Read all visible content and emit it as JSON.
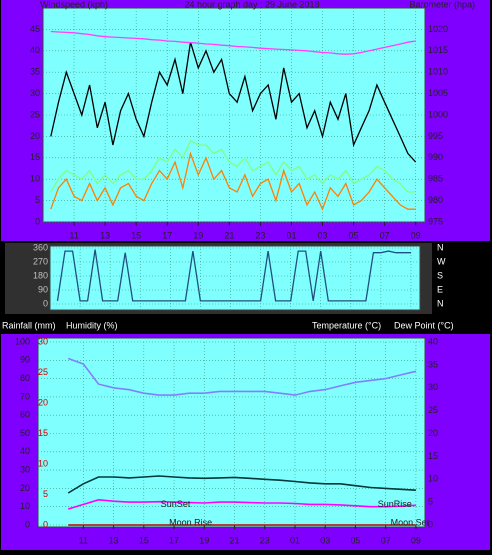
{
  "chart_data": [
    {
      "type": "line",
      "title": "24 hour graph day : 29 June 2018",
      "ylabel": "Windspeed (kph)",
      "y2label": "Barometer (hpa)",
      "x": [
        9.5,
        10,
        10.5,
        11,
        11.5,
        12,
        12.5,
        13,
        13.5,
        14,
        14.5,
        15,
        15.5,
        16,
        16.5,
        17,
        17.5,
        18,
        18.5,
        19,
        19.5,
        20,
        20.5,
        21,
        21.5,
        22,
        22.5,
        23,
        23.5,
        24,
        24.5,
        25,
        25.5,
        26,
        26.5,
        27,
        27.5,
        28,
        28.5,
        29,
        29.5,
        30,
        30.5,
        31,
        31.5,
        32,
        32.5,
        33
      ],
      "xlim": [
        9,
        33.6
      ],
      "xticks": [
        11,
        13,
        15,
        17,
        19,
        21,
        23,
        {
          "value": 25,
          "label": "01"
        },
        {
          "value": 27,
          "label": "03"
        },
        {
          "value": 29,
          "label": "05"
        },
        {
          "value": 31,
          "label": "07"
        },
        {
          "value": 33,
          "label": "09"
        }
      ],
      "ylim": [
        0,
        50
      ],
      "yticks": [
        0,
        5,
        10,
        15,
        20,
        25,
        30,
        35,
        40,
        45
      ],
      "y2lim": [
        975,
        1025
      ],
      "y2ticks": [
        975,
        980,
        985,
        990,
        995,
        1000,
        1005,
        1010,
        1015,
        1020
      ],
      "grid": true,
      "series": [
        {
          "color": "#000000",
          "values": [
            20,
            28,
            35,
            30,
            25,
            32,
            22,
            28,
            18,
            26,
            30,
            24,
            20,
            28,
            35,
            32,
            38,
            30,
            42,
            36,
            40,
            35,
            38,
            30,
            28,
            34,
            26,
            30,
            32,
            24,
            36,
            28,
            30,
            22,
            26,
            20,
            28,
            24,
            30,
            18,
            22,
            26,
            32,
            28,
            24,
            20,
            16,
            14
          ]
        },
        {
          "color": "#80ff80",
          "values": [
            7,
            10,
            12,
            11,
            10,
            12,
            9,
            11,
            9,
            11,
            12,
            10,
            10,
            12,
            15,
            14,
            17,
            15,
            19,
            18,
            18,
            16,
            17,
            14,
            13,
            15,
            12,
            13,
            14,
            11,
            14,
            12,
            13,
            10,
            11,
            9,
            11,
            10,
            12,
            9,
            10,
            11,
            13,
            12,
            10,
            9,
            7,
            7
          ]
        },
        {
          "color": "#ff8000",
          "values": [
            3,
            8,
            10,
            6,
            5,
            9,
            5,
            8,
            4,
            8,
            9,
            6,
            5,
            9,
            12,
            10,
            14,
            8,
            16,
            11,
            15,
            10,
            12,
            8,
            7,
            11,
            6,
            9,
            10,
            5,
            12,
            7,
            9,
            4,
            7,
            3,
            8,
            6,
            9,
            4,
            5,
            7,
            10,
            8,
            6,
            4,
            3,
            3
          ]
        },
        {
          "color": "#ff40ff",
          "axis": "y2",
          "values": [
            1019.5,
            1019.4,
            1019.3,
            1019.2,
            1019,
            1018.8,
            1018.5,
            1018.3,
            1018.2,
            1018.1,
            1018,
            1017.9,
            1017.8,
            1017.6,
            1017.5,
            1017.3,
            1017.2,
            1017,
            1016.9,
            1016.8,
            1016.6,
            1016.5,
            1016.3,
            1016.2,
            1016,
            1015.9,
            1015.8,
            1015.6,
            1015.5,
            1015.4,
            1015.3,
            1015.2,
            1015.1,
            1015,
            1014.8,
            1014.6,
            1014.5,
            1014.3,
            1014.2,
            1014.3,
            1014.6,
            1015,
            1015.4,
            1015.8,
            1016.2,
            1016.6,
            1017,
            1017.3
          ]
        }
      ]
    },
    {
      "type": "line",
      "x": [
        9.5,
        10,
        10.5,
        11,
        11.5,
        12,
        12.5,
        13,
        13.5,
        14,
        14.5,
        15,
        15.5,
        16,
        16.5,
        17,
        17.5,
        18,
        18.5,
        19,
        19.5,
        20,
        20.5,
        21,
        21.5,
        22,
        22.5,
        23,
        23.5,
        24,
        24.5,
        25,
        25.5,
        26,
        26.5,
        27,
        27.5,
        28,
        28.5,
        29,
        29.5,
        30,
        30.5,
        31,
        31.5,
        32,
        32.5,
        33
      ],
      "xlim": [
        9,
        33.6
      ],
      "ylim": [
        0,
        360
      ],
      "yticks": [
        0,
        90,
        180,
        270,
        360
      ],
      "y2lim": [
        0,
        360
      ],
      "y2ticks": [
        {
          "value": 0,
          "label": "N"
        },
        {
          "value": 90,
          "label": "E"
        },
        {
          "value": 180,
          "label": "S"
        },
        {
          "value": 270,
          "label": "W"
        },
        {
          "value": 360,
          "label": "N"
        }
      ],
      "grid": true,
      "series": [
        {
          "color": "#205080",
          "values": [
            20,
            340,
            340,
            20,
            20,
            350,
            20,
            20,
            20,
            330,
            20,
            20,
            20,
            20,
            20,
            20,
            20,
            20,
            340,
            20,
            20,
            20,
            20,
            20,
            20,
            20,
            20,
            20,
            340,
            20,
            20,
            20,
            340,
            340,
            20,
            340,
            20,
            20,
            20,
            20,
            20,
            20,
            330,
            330,
            340,
            330,
            330,
            330
          ]
        }
      ]
    },
    {
      "type": "line",
      "rain_label": "Rainfall (mm)",
      "ylabel": "Humidity (%)",
      "y2label": "Temperature (°C)",
      "dew_label": "Dew Point (°C)",
      "x": [
        10,
        11,
        12,
        13,
        14,
        15,
        16,
        17,
        18,
        19,
        20,
        21,
        22,
        23,
        24,
        25,
        26,
        27,
        28,
        29,
        30,
        31,
        32,
        33
      ],
      "xlim": [
        8,
        33.6
      ],
      "xticks": [
        11,
        13,
        15,
        17,
        19,
        21,
        23,
        {
          "value": 25,
          "label": "01"
        },
        {
          "value": 27,
          "label": "03"
        },
        {
          "value": 29,
          "label": "05"
        },
        {
          "value": 31,
          "label": "07"
        },
        {
          "value": 33,
          "label": "09"
        }
      ],
      "ylim": [
        0,
        100
      ],
      "yticks": [
        0,
        10,
        20,
        30,
        40,
        50,
        60,
        70,
        80,
        90,
        100
      ],
      "y2lim": [
        0,
        40
      ],
      "y2ticks": [
        0,
        5,
        10,
        15,
        20,
        25,
        30,
        35,
        40
      ],
      "y3lim": [
        0,
        30
      ],
      "y3ticks": [
        0,
        5,
        10,
        15,
        20,
        25,
        30
      ],
      "grid": true,
      "series": [
        {
          "color": "#8080ff",
          "values": [
            91,
            88,
            77,
            75,
            74,
            72,
            71,
            71,
            72,
            72,
            73,
            73,
            73,
            73,
            72,
            71,
            73,
            74,
            76,
            78,
            79,
            80,
            82,
            84
          ]
        },
        {
          "color": "#003838",
          "axis": "y2",
          "values": [
            7,
            9,
            10.5,
            10.5,
            10.3,
            10.5,
            10.7,
            10.5,
            10.3,
            10.2,
            10.3,
            10.4,
            10.2,
            10,
            9.8,
            9.5,
            9.2,
            9,
            9,
            8.6,
            8.2,
            8,
            7.8,
            7.6
          ]
        },
        {
          "color": "#ff00ff",
          "axis": "y2",
          "values": [
            3.5,
            4.5,
            5.5,
            5.2,
            5,
            5,
            5.1,
            5,
            4.9,
            4.8,
            5,
            5,
            4.9,
            4.8,
            4.8,
            4.7,
            4.5,
            4.5,
            4.4,
            4.2,
            4,
            4,
            4.1,
            4.3
          ]
        },
        {
          "color": "#c00000",
          "axis": "y3",
          "values": [
            0,
            0,
            0,
            0,
            0,
            0,
            0,
            0,
            0,
            0,
            0,
            0,
            0,
            0,
            0,
            0,
            0,
            0,
            0,
            0,
            0,
            0,
            0,
            0
          ]
        }
      ],
      "annotations": [
        {
          "text": "SunSet",
          "x": 17.1,
          "y": 11
        },
        {
          "text": "SunRise",
          "x": 31.6,
          "y": 11
        },
        {
          "text": "Moon Rise",
          "x": 18.1,
          "y": 1
        },
        {
          "text": "Moon Set",
          "x": 32.6,
          "y": 1
        }
      ]
    }
  ]
}
